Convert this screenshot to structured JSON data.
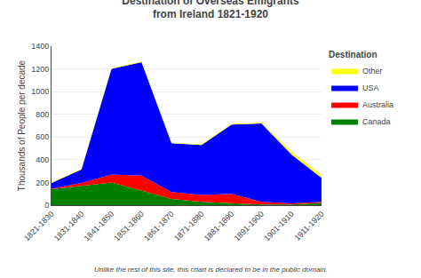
{
  "chart_data": {
    "type": "area",
    "stacked": true,
    "title": "Destination of Overseas Emigrants",
    "subtitle": "from Ireland 1821-1920",
    "ylabel": "Thousands of People per decade",
    "legend_title": "Destination",
    "annotations": [
      "Unlike the rest of this site, this chart is declared to be in the public domain."
    ],
    "categories": [
      "1821-1830",
      "1831-1840",
      "1841-1850",
      "1851-1860",
      "1861-1870",
      "1871-1880",
      "1881-1890",
      "1891-1900",
      "1901-1910",
      "1911-1920"
    ],
    "series": [
      {
        "name": "Canada",
        "color": "#008000",
        "values": [
          140,
          170,
          200,
          130,
          55,
          30,
          20,
          5,
          5,
          20
        ]
      },
      {
        "name": "Australia",
        "color": "#ff0000",
        "values": [
          5,
          25,
          70,
          130,
          60,
          60,
          80,
          25,
          10,
          10
        ]
      },
      {
        "name": "USA",
        "color": "#0000ff",
        "values": [
          50,
          120,
          930,
          1000,
          430,
          440,
          610,
          690,
          430,
          210
        ]
      },
      {
        "name": "Other",
        "color": "#ffff00",
        "values": [
          5,
          5,
          5,
          5,
          5,
          5,
          5,
          5,
          25,
          25
        ]
      }
    ],
    "ylim": [
      0,
      1400
    ],
    "yticks": [
      0,
      200,
      400,
      600,
      800,
      1000,
      1200,
      1400
    ],
    "grid": true,
    "legend": "right"
  }
}
